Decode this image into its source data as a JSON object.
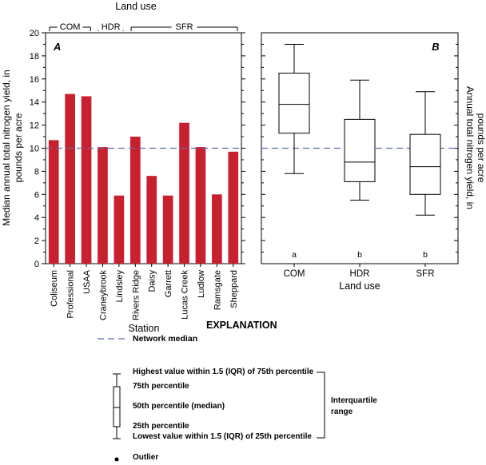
{
  "chart_data": [
    {
      "type": "bar",
      "panel_label": "A",
      "top_label": "Land use",
      "groups": [
        {
          "name": "COM",
          "start": 0,
          "end": 2
        },
        {
          "name": "HDR",
          "start": 3,
          "end": 4
        },
        {
          "name": "SFR",
          "start": 5,
          "end": 11
        }
      ],
      "categories": [
        "Coliseum",
        "Professional",
        "USAA",
        "Craneybrook",
        "Lindsley",
        "Rivers Ridge",
        "Daisy",
        "Garrett",
        "Lucas Creek",
        "Ludlow",
        "Ramsgate",
        "Sheppard"
      ],
      "values": [
        10.7,
        14.7,
        14.5,
        10.1,
        5.9,
        11.0,
        7.6,
        5.9,
        12.2,
        10.1,
        6.0,
        9.7
      ],
      "xlabel": "Station",
      "ylabel": "Median annual total nitrogen yield, in pounds per acre",
      "ylim": [
        0,
        20
      ],
      "yticks": [
        0,
        2,
        4,
        6,
        8,
        10,
        12,
        14,
        16,
        18,
        20
      ],
      "reference_line": 10.0,
      "bar_color": "#c8202f"
    },
    {
      "type": "box",
      "panel_label": "B",
      "categories": [
        "COM",
        "HDR",
        "SFR"
      ],
      "boxes": [
        {
          "name": "COM",
          "whisker_low": 7.8,
          "q1": 11.3,
          "median": 13.8,
          "q3": 16.5,
          "whisker_high": 19.0,
          "group_letter": "a"
        },
        {
          "name": "HDR",
          "whisker_low": 5.5,
          "q1": 7.1,
          "median": 8.8,
          "q3": 12.5,
          "whisker_high": 15.9,
          "group_letter": "b"
        },
        {
          "name": "SFR",
          "whisker_low": 4.2,
          "q1": 6.0,
          "median": 8.4,
          "q3": 11.2,
          "whisker_high": 14.9,
          "group_letter": "b"
        }
      ],
      "xlabel": "Land use",
      "ylabel": "Annual total nitrogen yield, in pounds per acre",
      "ylim": [
        0,
        20
      ],
      "reference_line": 10.0
    }
  ],
  "explanation": {
    "title": "EXPLANATION",
    "network_median": "Network median",
    "highest": "Highest value within 1.5 (IQR) of 75th percentile",
    "p75": "75th percentile",
    "p50": "50th percentile (median)",
    "p25": "25th percentile",
    "lowest": "Lowest value within 1.5 (IQR) of 25th percentile",
    "iqr_line1": "Interquartile",
    "iqr_line2": "range",
    "outlier": "Outlier"
  },
  "colors": {
    "bar": "#c8202f",
    "network_median": "#5b6fa6"
  }
}
